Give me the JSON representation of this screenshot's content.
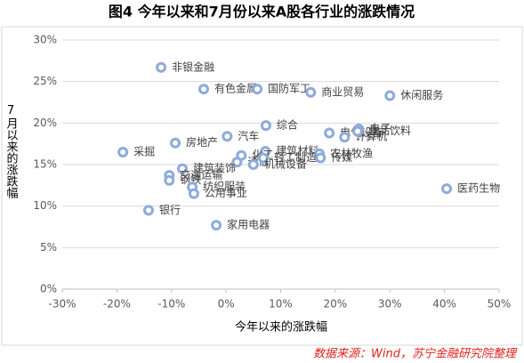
{
  "chart_data": {
    "type": "scatter",
    "title": "图4  今年以来和7月份以来A股各行业的涨跌情况",
    "x_label": "今年以来的涨跌幅",
    "y_label": "7月以来的涨跌幅",
    "source": "数据来源：Wind，苏宁金融研究院整理",
    "labels": [
      "非银金融",
      "有色金属",
      "国防军工",
      "商业贸易",
      "休闲服务",
      "综合",
      "汽车",
      "房地产",
      "采掘",
      "电气设备",
      "计算机",
      "电子",
      "食品饮料",
      "建筑材料",
      "农林牧渔",
      "传媒",
      "化工",
      "通信",
      "轻工制造",
      "机械设备",
      "建筑装饰",
      "交通运输",
      "钢铁",
      "纺织服装",
      "公用事业",
      "银行",
      "家用电器",
      "医药生物"
    ],
    "x": [
      -11.9,
      -4.1,
      5.7,
      15.5,
      30.0,
      7.3,
      0.2,
      -9.3,
      -18.9,
      18.9,
      21.7,
      24.3,
      24.1,
      7.2,
      17.1,
      17.3,
      2.8,
      2.0,
      6.8,
      5.0,
      -8.0,
      -10.4,
      -10.4,
      -6.2,
      -5.9,
      -14.2,
      -1.8,
      40.4
    ],
    "values": [
      26.7,
      24.1,
      24.1,
      23.7,
      23.3,
      19.7,
      18.4,
      17.6,
      16.5,
      18.8,
      18.3,
      19.3,
      19.0,
      16.6,
      16.3,
      15.8,
      16.1,
      15.3,
      15.8,
      15.0,
      14.5,
      13.7,
      13.1,
      12.3,
      11.5,
      9.5,
      7.7,
      12.1
    ],
    "color": "#8eaadb",
    "xlim": [
      -30,
      50
    ],
    "ylim": [
      0,
      30
    ],
    "xticks": [
      {
        "value": -30,
        "label": "-30%"
      },
      {
        "value": -20,
        "label": "-20%"
      },
      {
        "value": -10,
        "label": "-10%"
      },
      {
        "value": 0,
        "label": "0%"
      },
      {
        "value": 10,
        "label": "10%"
      },
      {
        "value": 20,
        "label": "20%"
      },
      {
        "value": 30,
        "label": "30%"
      },
      {
        "value": 40,
        "label": "40%"
      },
      {
        "value": 50,
        "label": "50%"
      }
    ],
    "yticks": [
      {
        "value": 0,
        "label": "0%"
      },
      {
        "value": 5,
        "label": "5%"
      },
      {
        "value": 10,
        "label": "10%"
      },
      {
        "value": 15,
        "label": "15%"
      },
      {
        "value": 20,
        "label": "20%"
      },
      {
        "value": 25,
        "label": "25%"
      },
      {
        "value": 30,
        "label": "30%"
      }
    ],
    "grid": true
  }
}
